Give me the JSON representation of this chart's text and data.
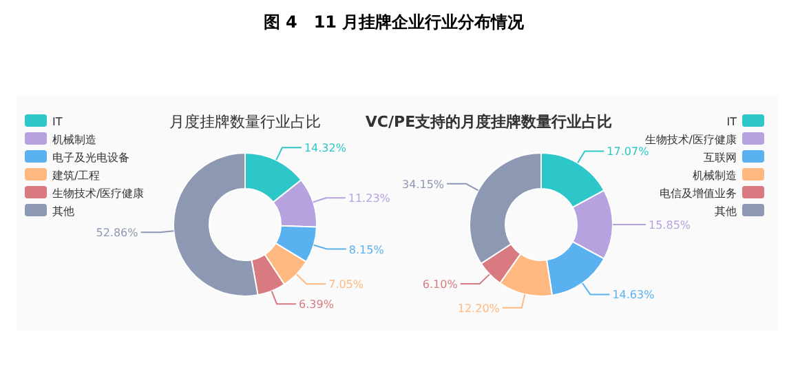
{
  "chart_data": [
    {
      "type": "donut",
      "title": "月度挂牌数量行业占比",
      "annotations": [
        "图 4　11 月挂牌企业行业分布情况"
      ],
      "legend": "top left",
      "categories": [
        "IT",
        "机械制造",
        "电子及光电设备",
        "建筑/工程",
        "生物技术/医疗健康",
        "其他"
      ],
      "values": [
        14.32,
        11.23,
        8.15,
        7.05,
        6.39,
        52.86
      ],
      "value_labels": [
        "14.32%",
        "11.23%",
        "8.15%",
        "7.05%",
        "6.39%",
        "52.86%"
      ],
      "colors": [
        "#2ec7c9",
        "#b6a2de",
        "#5ab1ef",
        "#ffb980",
        "#d87a80",
        "#8d98b3"
      ]
    },
    {
      "type": "donut",
      "title": "VC/PE支持的月度挂牌数量行业占比",
      "legend": "top right",
      "categories": [
        "IT",
        "生物技术/医疗健康",
        "互联网",
        "机械制造",
        "电信及增值业务",
        "其他"
      ],
      "values": [
        17.07,
        15.85,
        14.63,
        12.2,
        6.1,
        34.15
      ],
      "value_labels": [
        "17.07%",
        "15.85%",
        "14.63%",
        "12.20%",
        "6.10%",
        "34.15%"
      ],
      "colors": [
        "#2ec7c9",
        "#b6a2de",
        "#5ab1ef",
        "#ffb980",
        "#d87a80",
        "#8d98b3"
      ]
    }
  ]
}
